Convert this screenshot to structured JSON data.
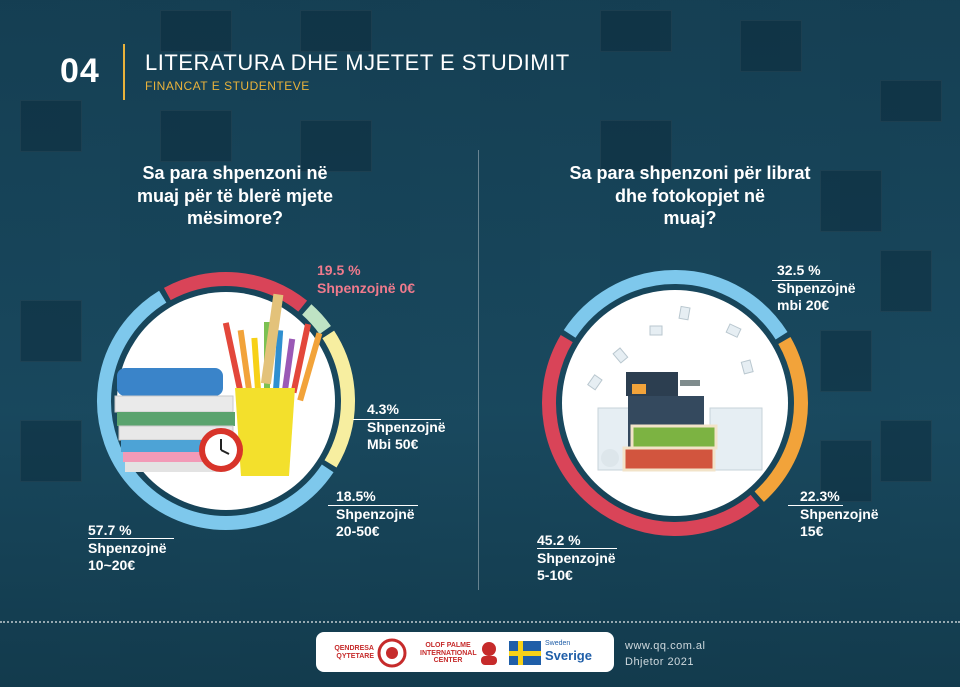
{
  "header": {
    "number": "04",
    "title": "LITERATURA DHE MJETET E STUDIMIT",
    "subtitle": "FINANCAT E STUDENTEVE"
  },
  "colors": {
    "red": "#d94458",
    "green": "#bfe3c4",
    "yellow": "#f7eea0",
    "blue": "#7ec8ec",
    "orange": "#f2a33a",
    "accent": "#e9b23b",
    "pink_label": "#f07a8c"
  },
  "chart_data": [
    {
      "type": "pie",
      "title": "Sa para shpenzoni në muaj për të blerë mjete mësimore?",
      "title_lines": [
        "Sa para shpenzoni në",
        "muaj për të blerë mjete",
        "mësimore?"
      ],
      "slices": [
        {
          "value": 19.5,
          "pct_label": "19.5 %",
          "desc": [
            "Shpenzojnë 0€"
          ],
          "color": "#d94458"
        },
        {
          "value": 4.3,
          "pct_label": "4.3%",
          "desc": [
            "Shpenzojnë",
            "Mbi 50€"
          ],
          "color": "#bfe3c4"
        },
        {
          "value": 18.5,
          "pct_label": "18.5%",
          "desc": [
            "Shpenzojnë",
            "20-50€"
          ],
          "color": "#f7eea0"
        },
        {
          "value": 57.7,
          "pct_label": "57.7 %",
          "desc": [
            "Shpenzojnë",
            "10~20€"
          ],
          "color": "#7ec8ec"
        }
      ],
      "image": "school-supplies"
    },
    {
      "type": "pie",
      "title": "Sa para shpenzoni për librat dhe fotokopjet në muaj?",
      "title_lines": [
        "Sa para shpenzoni për librat",
        "dhe fotokopjet në",
        "muaj?"
      ],
      "slices": [
        {
          "value": 32.5,
          "pct_label": "32.5 %",
          "desc": [
            "Shpenzojnë",
            "mbi 20€"
          ],
          "color": "#7ec8ec"
        },
        {
          "value": 22.3,
          "pct_label": "22.3%",
          "desc": [
            "Shpenzojnë",
            "15€"
          ],
          "color": "#f2a33a"
        },
        {
          "value": 45.2,
          "pct_label": "45.2 %",
          "desc": [
            "Shpenzojnë",
            "5-10€"
          ],
          "color": "#d94458"
        }
      ],
      "image": "photocopier-and-books"
    }
  ],
  "footer": {
    "logo1": [
      "QENDRESA",
      "QYTETARE"
    ],
    "logo2": [
      "OLOF PALME",
      "INTERNATIONAL",
      "CENTER"
    ],
    "logo3_small": "Sweden",
    "logo3_big": "Sverige",
    "website": "www.qq.com.al",
    "date": "Dhjetor 2021"
  }
}
